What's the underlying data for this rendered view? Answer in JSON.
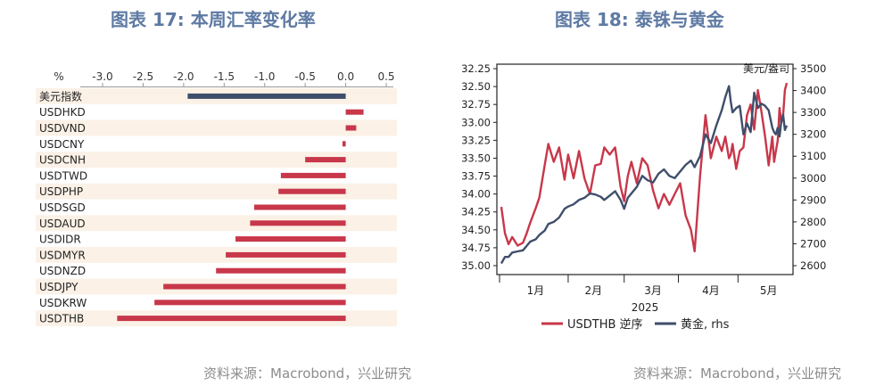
{
  "left": {
    "title": "图表 17: 本周汇率变化率",
    "source": "资料来源：Macrobond，兴业研究"
  },
  "right": {
    "title": "图表 18: 泰铢与黄金",
    "source": "资料来源：Macrobond，兴业研究"
  },
  "colors": {
    "red": "#c8374a",
    "navy": "#3f4e6b",
    "band": "#fbf1e6",
    "title": "#5e7aa3"
  },
  "chart_data": [
    {
      "type": "bar",
      "orientation": "horizontal",
      "title": "图表 17: 本周汇率变化率",
      "xlabel": "%",
      "xlim": [
        -3.0,
        0.5
      ],
      "xticks": [
        -3.0,
        -2.5,
        -2.0,
        -1.5,
        -1.0,
        -0.5,
        0.0,
        0.5
      ],
      "tick_labels": [
        "-3.0",
        "-2.5",
        "-2.0",
        "-1.5",
        "-1.0",
        "-0.5",
        "0.0",
        "0.5"
      ],
      "categories": [
        "美元指数",
        "USDHKD",
        "USDVND",
        "USDCNY",
        "USDCNH",
        "USDTWD",
        "USDPHP",
        "USDSGD",
        "USDAUD",
        "USDIDR",
        "USDMYR",
        "USDNZD",
        "USDJPY",
        "USDKRW",
        "USDTHB"
      ],
      "values": [
        -1.95,
        0.22,
        0.13,
        -0.04,
        -0.5,
        -0.8,
        -0.83,
        -1.13,
        -1.18,
        -1.36,
        -1.48,
        -1.6,
        -2.25,
        -2.36,
        -2.82
      ],
      "colors": [
        "#3f4e6b",
        "#c8374a",
        "#c8374a",
        "#c8374a",
        "#c8374a",
        "#c8374a",
        "#c8374a",
        "#c8374a",
        "#c8374a",
        "#c8374a",
        "#c8374a",
        "#c8374a",
        "#c8374a",
        "#c8374a",
        "#c8374a"
      ]
    },
    {
      "type": "line",
      "title": "图表 18: 泰铢与黄金",
      "x_axis": {
        "year": "2025",
        "months": [
          "1月",
          "2月",
          "3月",
          "4月",
          "5月"
        ]
      },
      "y_left": {
        "lim": [
          35.0,
          32.25
        ],
        "inverted": true,
        "ticks": [
          "32.25",
          "32.50",
          "32.75",
          "33.00",
          "33.25",
          "33.50",
          "33.75",
          "34.00",
          "34.25",
          "34.50",
          "34.75",
          "35.00"
        ]
      },
      "y_right": {
        "label": "美元/盎司",
        "lim": [
          2600,
          3500
        ],
        "ticks": [
          "3500",
          "3400",
          "3300",
          "3200",
          "3100",
          "3000",
          "2900",
          "2800",
          "2700",
          "2600"
        ]
      },
      "legend": [
        "USDTHB 逆序",
        "黄金, rhs"
      ],
      "series": [
        {
          "name": "USDTHB 逆序",
          "axis": "left",
          "color": "#c8374a",
          "x": [
            1,
            3,
            5,
            7,
            10,
            13,
            15,
            17,
            20,
            22,
            25,
            27,
            30,
            33,
            36,
            38,
            41,
            44,
            47,
            50,
            53,
            56,
            58,
            61,
            64,
            67,
            69,
            71,
            73,
            76,
            79,
            82,
            85,
            88,
            91,
            94,
            97,
            100,
            103,
            106,
            108,
            111,
            114,
            117,
            120,
            123,
            125,
            127,
            128,
            129,
            131,
            133,
            135,
            137,
            139,
            141,
            143,
            145,
            147,
            149,
            151,
            152,
            153,
            154,
            155,
            156,
            157,
            158,
            159
          ],
          "y": [
            34.18,
            34.55,
            34.7,
            34.6,
            34.72,
            34.68,
            34.55,
            34.4,
            34.2,
            34.05,
            33.6,
            33.3,
            33.55,
            33.35,
            33.8,
            33.45,
            33.78,
            33.4,
            33.78,
            34.0,
            33.6,
            33.58,
            33.35,
            33.45,
            33.35,
            33.9,
            34.1,
            33.75,
            33.55,
            33.85,
            33.5,
            33.6,
            33.95,
            34.2,
            34.0,
            34.15,
            34.0,
            33.85,
            34.3,
            34.5,
            34.8,
            33.75,
            32.9,
            33.5,
            33.2,
            33.4,
            33.2,
            33.5,
            33.45,
            33.3,
            33.65,
            33.4,
            33.35,
            32.9,
            32.75,
            33.1,
            32.55,
            32.85,
            33.2,
            33.6,
            33.2,
            33.55,
            33.4,
            33.25,
            32.8,
            33.0,
            32.9,
            32.55,
            32.45
          ]
        },
        {
          "name": "黄金, rhs",
          "axis": "right",
          "color": "#3f4e6b",
          "x": [
            1,
            3,
            5,
            7,
            10,
            13,
            15,
            17,
            20,
            22,
            25,
            27,
            30,
            33,
            36,
            38,
            41,
            44,
            47,
            50,
            53,
            56,
            58,
            61,
            64,
            67,
            69,
            71,
            73,
            76,
            79,
            82,
            85,
            88,
            91,
            94,
            97,
            100,
            103,
            106,
            108,
            111,
            114,
            117,
            120,
            123,
            125,
            127,
            128,
            129,
            131,
            133,
            135,
            137,
            139,
            141,
            143,
            145,
            147,
            149,
            151,
            152,
            153,
            154,
            155,
            156,
            157,
            158,
            159
          ],
          "y": [
            2610,
            2640,
            2640,
            2660,
            2665,
            2670,
            2690,
            2710,
            2720,
            2740,
            2760,
            2790,
            2800,
            2820,
            2860,
            2870,
            2880,
            2900,
            2910,
            2930,
            2925,
            2915,
            2900,
            2920,
            2940,
            2900,
            2860,
            2910,
            2930,
            2960,
            3010,
            2990,
            2980,
            3020,
            3040,
            3010,
            3000,
            3030,
            3060,
            3080,
            3050,
            3100,
            3200,
            3160,
            3240,
            3310,
            3370,
            3420,
            3350,
            3300,
            3320,
            3330,
            3200,
            3250,
            3210,
            3390,
            3320,
            3340,
            3330,
            3310,
            3230,
            3210,
            3200,
            3230,
            3190,
            3260,
            3290,
            3220,
            3240
          ]
        }
      ]
    }
  ]
}
